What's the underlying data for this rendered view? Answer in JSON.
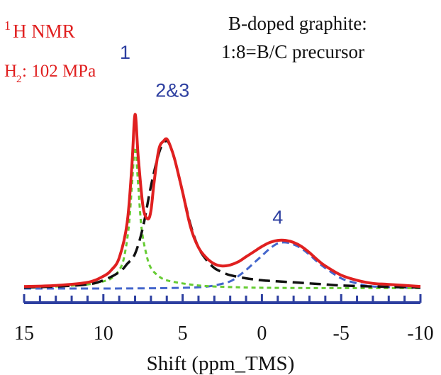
{
  "chart_data": {
    "type": "line",
    "title_nucleus": "1",
    "title_main": "H NMR",
    "condition_main": "H",
    "condition_sub": "2",
    "condition_rest": ": 102 MPa",
    "sample_line1": "B-doped graphite:",
    "sample_line2": "1:8=B/C precursor",
    "xlabel": "Shift (ppm_TMS)",
    "x_reversed": true,
    "xlim": [
      15,
      -10
    ],
    "xticks": [
      15,
      10,
      5,
      0,
      -5,
      -10
    ],
    "xtick_labels": [
      "15",
      "10",
      "5",
      "0",
      "-5",
      "-10"
    ],
    "minor_tick_step": 1,
    "peak_labels": [
      {
        "text": "1",
        "x": 8.0,
        "y": 1.0
      },
      {
        "text": "2&3",
        "x": 6.0,
        "y": 0.88
      },
      {
        "text": "4",
        "x": -1.0,
        "y": 0.24
      }
    ],
    "series": [
      {
        "role": "measured",
        "color": "#e02020",
        "dash": "solid",
        "x": [
          15,
          13,
          11,
          10,
          9.5,
          9,
          8.5,
          8.2,
          8.0,
          7.8,
          7.5,
          7.2,
          7.0,
          6.8,
          6.5,
          6.2,
          6.0,
          5.8,
          5.5,
          5.0,
          4.5,
          4.0,
          3.5,
          3.0,
          2.5,
          2.0,
          1.5,
          1.0,
          0.5,
          0.0,
          -0.5,
          -1.0,
          -1.5,
          -2.0,
          -2.5,
          -3.0,
          -3.5,
          -4.0,
          -5.0,
          -6.0,
          -7.0,
          -8.0,
          -10.0
        ],
        "y": [
          0.01,
          0.015,
          0.03,
          0.06,
          0.09,
          0.15,
          0.32,
          0.6,
          0.85,
          0.64,
          0.4,
          0.34,
          0.38,
          0.52,
          0.68,
          0.72,
          0.73,
          0.7,
          0.63,
          0.47,
          0.3,
          0.2,
          0.15,
          0.12,
          0.11,
          0.115,
          0.13,
          0.155,
          0.18,
          0.205,
          0.225,
          0.235,
          0.235,
          0.225,
          0.205,
          0.175,
          0.14,
          0.11,
          0.065,
          0.04,
          0.025,
          0.02,
          0.01
        ]
      },
      {
        "role": "fit peak 1",
        "color": "#66cc33",
        "dash": "short",
        "x": [
          15,
          13,
          11,
          10,
          9.5,
          9,
          8.7,
          8.4,
          8.2,
          8.0,
          7.8,
          7.6,
          7.3,
          7.0,
          6.5,
          6.0,
          5.0,
          4.0,
          3.0,
          1.0,
          -1.0,
          -5.0,
          -10.0
        ],
        "y": [
          0.005,
          0.01,
          0.02,
          0.035,
          0.05,
          0.09,
          0.15,
          0.3,
          0.5,
          0.69,
          0.5,
          0.3,
          0.17,
          0.1,
          0.06,
          0.04,
          0.025,
          0.015,
          0.01,
          0.005,
          0.003,
          0.002,
          0.002
        ]
      },
      {
        "role": "fit peaks 2&3",
        "color": "#111111",
        "dash": "long",
        "x": [
          15,
          13,
          11,
          10,
          9,
          8.5,
          8.0,
          7.5,
          7.0,
          6.5,
          6.2,
          6.0,
          5.8,
          5.5,
          5.0,
          4.5,
          4.0,
          3.5,
          3.0,
          2.5,
          2.0,
          1.0,
          0.0,
          -1.0,
          -2.0,
          -3.0,
          -4.0,
          -5.0,
          -7.0,
          -10.0
        ],
        "y": [
          0.005,
          0.01,
          0.02,
          0.04,
          0.08,
          0.12,
          0.17,
          0.3,
          0.5,
          0.66,
          0.71,
          0.72,
          0.7,
          0.63,
          0.47,
          0.31,
          0.2,
          0.14,
          0.1,
          0.08,
          0.065,
          0.05,
          0.04,
          0.035,
          0.03,
          0.025,
          0.02,
          0.015,
          0.01,
          0.005
        ]
      },
      {
        "role": "fit peak 4",
        "color": "#4466cc",
        "dash": "medium",
        "x": [
          15,
          10,
          6,
          4,
          3,
          2,
          1.5,
          1.0,
          0.5,
          0.0,
          -0.5,
          -1.0,
          -1.5,
          -2.0,
          -2.5,
          -3.0,
          -3.5,
          -4.0,
          -5.0,
          -6.0,
          -7.0,
          -10.0
        ],
        "y": [
          0.0,
          0.0,
          0.002,
          0.006,
          0.015,
          0.035,
          0.06,
          0.09,
          0.125,
          0.16,
          0.195,
          0.22,
          0.225,
          0.215,
          0.195,
          0.165,
          0.13,
          0.1,
          0.05,
          0.025,
          0.01,
          0.002
        ]
      }
    ]
  }
}
